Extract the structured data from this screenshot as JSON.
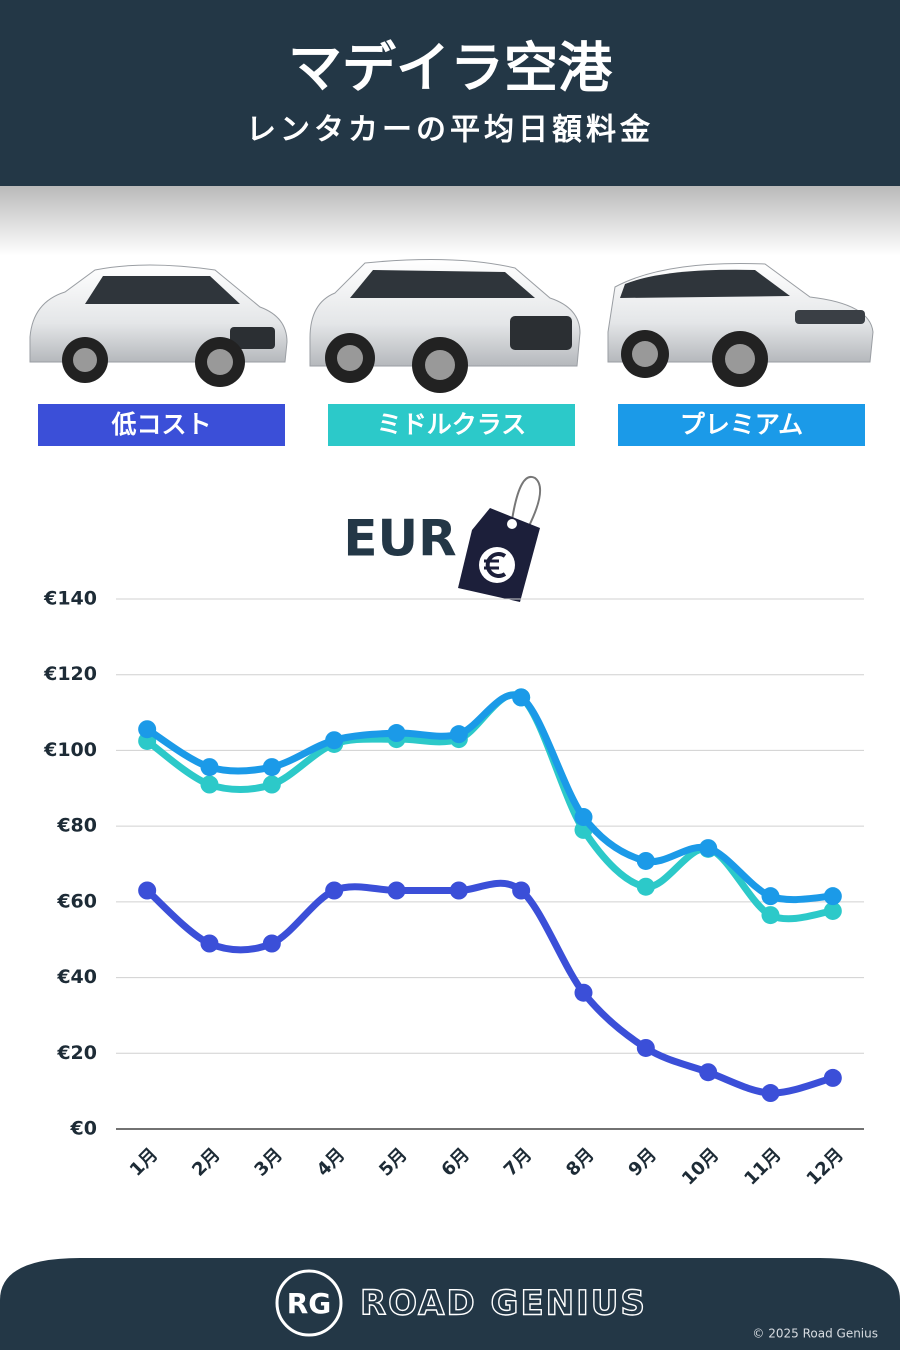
{
  "header": {
    "title": "マデイラ空港",
    "subtitle": "レンタカーの平均日額料金"
  },
  "chart_data": {
    "type": "line",
    "currency_label": "EUR",
    "categories": [
      "1月",
      "2月",
      "3月",
      "4月",
      "5月",
      "6月",
      "7月",
      "8月",
      "9月",
      "10月",
      "11月",
      "12月"
    ],
    "series": [
      {
        "name": "低コスト",
        "color": "#3b4fd8",
        "values": [
          63,
          49,
          49,
          63,
          63,
          63,
          63,
          36,
          21.4,
          15,
          9.5,
          13.5
        ]
      },
      {
        "name": "ミドルクラス",
        "color": "#2cc9c9",
        "values": [
          102.5,
          91,
          91,
          101.7,
          103,
          103,
          114,
          79,
          64,
          74,
          56.5,
          57.6
        ]
      },
      {
        "name": "プレミアム",
        "color": "#1b9ae8",
        "values": [
          105.6,
          95.6,
          95.6,
          102.7,
          104.6,
          104.3,
          114,
          82.4,
          70.8,
          74.2,
          61.5,
          61.5
        ]
      }
    ],
    "ylim": [
      0,
      140
    ],
    "yticks": [
      {
        "value": 0,
        "label": "€0"
      },
      {
        "value": 20,
        "label": "€20"
      },
      {
        "value": 40,
        "label": "€40"
      },
      {
        "value": 60,
        "label": "€60"
      },
      {
        "value": 80,
        "label": "€80"
      },
      {
        "value": 100,
        "label": "€100"
      },
      {
        "value": 120,
        "label": "€120"
      },
      {
        "value": 140,
        "label": "€140"
      }
    ],
    "grid": true,
    "legend_position": "top"
  },
  "footer": {
    "logo": "RG",
    "brand": "ROAD GENIUS",
    "copyright": "© 2025 Road Genius"
  }
}
